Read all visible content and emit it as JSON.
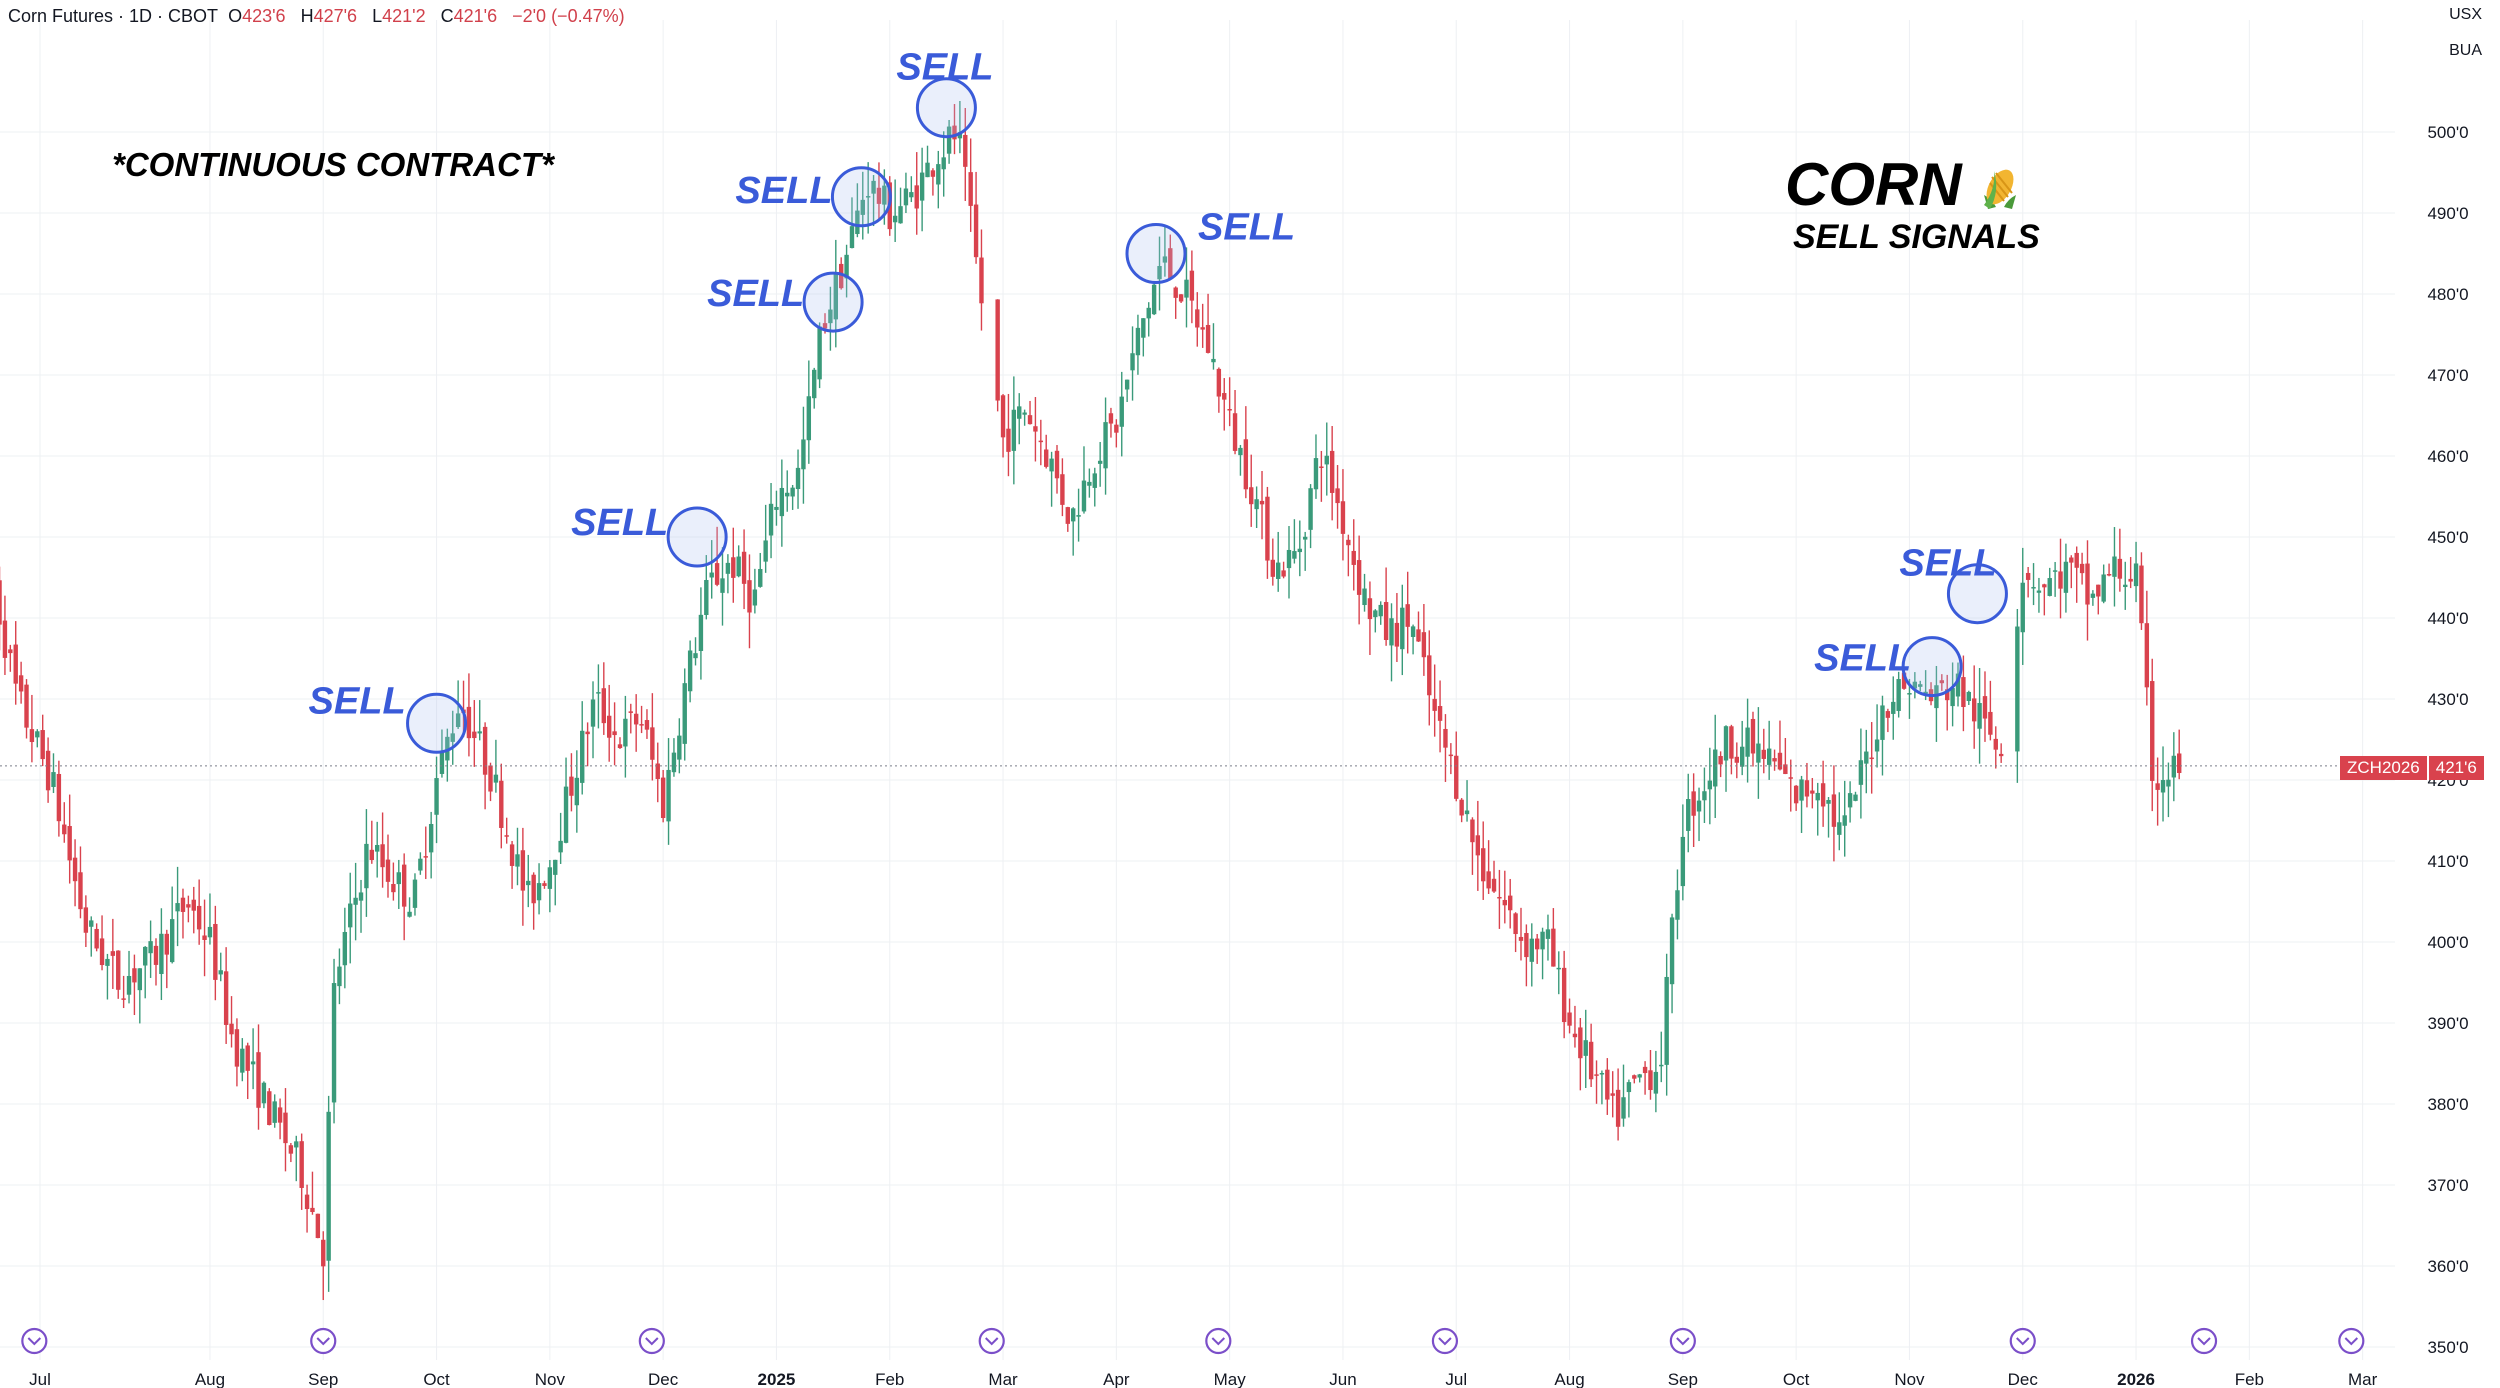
{
  "header": {
    "symbol": "Corn Futures · 1D · CBOT",
    "ohlc": [
      {
        "k": "O",
        "v": "423'6"
      },
      {
        "k": "H",
        "v": "427'6"
      },
      {
        "k": "L",
        "v": "421'2"
      },
      {
        "k": "C",
        "v": "421'6"
      }
    ],
    "change": "−2'0 (−0.47%)"
  },
  "currency": "USX",
  "unit": "BUA",
  "annotations": {
    "continuous": "*CONTINUOUS CONTRACT*",
    "title": "CORN",
    "title_icon": "corn-emoji",
    "subtitle": "SELL SIGNALS"
  },
  "price_badge": {
    "symbol": "ZCH2026",
    "price": "421'6"
  },
  "colors": {
    "up": "#3a9a7a",
    "down": "#d9424d",
    "signal": "#3a5bd9",
    "grid": "#eef0f3"
  },
  "chart_data": {
    "type": "candlestick",
    "y_axis": {
      "min": 350,
      "max": 506,
      "ticks": [
        350,
        360,
        370,
        380,
        390,
        400,
        410,
        420,
        430,
        440,
        450,
        460,
        470,
        480,
        490,
        500
      ],
      "tick_labels": [
        "350'0",
        "360'0",
        "370'0",
        "380'0",
        "390'0",
        "400'0",
        "410'0",
        "420'0",
        "430'0",
        "440'0",
        "450'0",
        "460'0",
        "470'0",
        "480'0",
        "490'0",
        "500'0"
      ]
    },
    "x_axis": {
      "labels": [
        {
          "t": 0.5,
          "label": "Jul"
        },
        {
          "t": 2.0,
          "label": "Aug"
        },
        {
          "t": 3.0,
          "label": "Sep"
        },
        {
          "t": 4.0,
          "label": "Oct"
        },
        {
          "t": 5.0,
          "label": "Nov"
        },
        {
          "t": 6.0,
          "label": "Dec"
        },
        {
          "t": 7.0,
          "label": "2025",
          "year": true
        },
        {
          "t": 8.0,
          "label": "Feb"
        },
        {
          "t": 9.0,
          "label": "Mar"
        },
        {
          "t": 10.0,
          "label": "Apr"
        },
        {
          "t": 11.0,
          "label": "May"
        },
        {
          "t": 12.0,
          "label": "Jun"
        },
        {
          "t": 13.0,
          "label": "Jul"
        },
        {
          "t": 14.0,
          "label": "Aug"
        },
        {
          "t": 15.0,
          "label": "Sep"
        },
        {
          "t": 16.0,
          "label": "Oct"
        },
        {
          "t": 17.0,
          "label": "Nov"
        },
        {
          "t": 18.0,
          "label": "Dec"
        },
        {
          "t": 19.0,
          "label": "2026",
          "year": true
        },
        {
          "t": 20.0,
          "label": "Feb"
        },
        {
          "t": 21.0,
          "label": "Mar"
        }
      ]
    },
    "price_path": [
      [
        0.0,
        450
      ],
      [
        0.3,
        430
      ],
      [
        0.6,
        420
      ],
      [
        0.9,
        402
      ],
      [
        1.2,
        395
      ],
      [
        1.5,
        398
      ],
      [
        1.8,
        405
      ],
      [
        2.0,
        400
      ],
      [
        2.2,
        388
      ],
      [
        2.5,
        380
      ],
      [
        2.8,
        372
      ],
      [
        3.0,
        362
      ],
      [
        3.1,
        395
      ],
      [
        3.4,
        412
      ],
      [
        3.6,
        408
      ],
      [
        3.8,
        405
      ],
      [
        4.0,
        420
      ],
      [
        4.2,
        430
      ],
      [
        4.5,
        420
      ],
      [
        4.8,
        405
      ],
      [
        5.0,
        410
      ],
      [
        5.2,
        420
      ],
      [
        5.4,
        430
      ],
      [
        5.6,
        425
      ],
      [
        5.8,
        428
      ],
      [
        6.0,
        417
      ],
      [
        6.2,
        432
      ],
      [
        6.4,
        444
      ],
      [
        6.6,
        447
      ],
      [
        6.8,
        442
      ],
      [
        7.0,
        455
      ],
      [
        7.2,
        458
      ],
      [
        7.4,
        476
      ],
      [
        7.6,
        484
      ],
      [
        7.8,
        494
      ],
      [
        8.0,
        490
      ],
      [
        8.2,
        492
      ],
      [
        8.4,
        497
      ],
      [
        8.6,
        500
      ],
      [
        8.8,
        480
      ],
      [
        9.0,
        462
      ],
      [
        9.2,
        466
      ],
      [
        9.4,
        460
      ],
      [
        9.6,
        452
      ],
      [
        9.8,
        460
      ],
      [
        10.0,
        464
      ],
      [
        10.2,
        475
      ],
      [
        10.4,
        484
      ],
      [
        10.6,
        480
      ],
      [
        10.8,
        474
      ],
      [
        11.0,
        464
      ],
      [
        11.2,
        456
      ],
      [
        11.4,
        446
      ],
      [
        11.6,
        448
      ],
      [
        11.8,
        461
      ],
      [
        12.0,
        452
      ],
      [
        12.2,
        442
      ],
      [
        12.4,
        438
      ],
      [
        12.6,
        440
      ],
      [
        12.8,
        428
      ],
      [
        13.0,
        420
      ],
      [
        13.2,
        410
      ],
      [
        13.4,
        405
      ],
      [
        13.6,
        400
      ],
      [
        13.8,
        400
      ],
      [
        14.0,
        390
      ],
      [
        14.2,
        384
      ],
      [
        14.4,
        378
      ],
      [
        14.6,
        383
      ],
      [
        14.8,
        385
      ],
      [
        15.0,
        415
      ],
      [
        15.2,
        420
      ],
      [
        15.4,
        425
      ],
      [
        15.6,
        424
      ],
      [
        15.8,
        422
      ],
      [
        16.0,
        418
      ],
      [
        16.2,
        420
      ],
      [
        16.4,
        413
      ],
      [
        16.6,
        422
      ],
      [
        16.8,
        430
      ],
      [
        17.0,
        432
      ],
      [
        17.2,
        430
      ],
      [
        17.4,
        432
      ],
      [
        17.6,
        428
      ],
      [
        17.8,
        424
      ],
      [
        18.0,
        446
      ],
      [
        18.2,
        444
      ],
      [
        18.4,
        446
      ],
      [
        18.6,
        442
      ],
      [
        18.8,
        446
      ],
      [
        19.0,
        445
      ],
      [
        19.15,
        420
      ],
      [
        19.4,
        421.75
      ]
    ],
    "gaps": [
      [
        8.85,
        8.95
      ],
      [
        17.85,
        17.95
      ]
    ],
    "sell_signals": [
      {
        "t": 4.0,
        "price": 427,
        "label": "SELL"
      },
      {
        "t": 6.3,
        "price": 450,
        "label": "SELL"
      },
      {
        "t": 7.5,
        "price": 479,
        "label": "SELL"
      },
      {
        "t": 7.75,
        "price": 492,
        "label": "SELL"
      },
      {
        "t": 8.5,
        "price": 503,
        "label": "SELL"
      },
      {
        "t": 10.35,
        "price": 485,
        "label": "SELL"
      },
      {
        "t": 17.2,
        "price": 434,
        "label": "SELL"
      },
      {
        "t": 17.6,
        "price": 443,
        "label": "SELL"
      }
    ],
    "last_price": 421.75,
    "grid": true
  }
}
